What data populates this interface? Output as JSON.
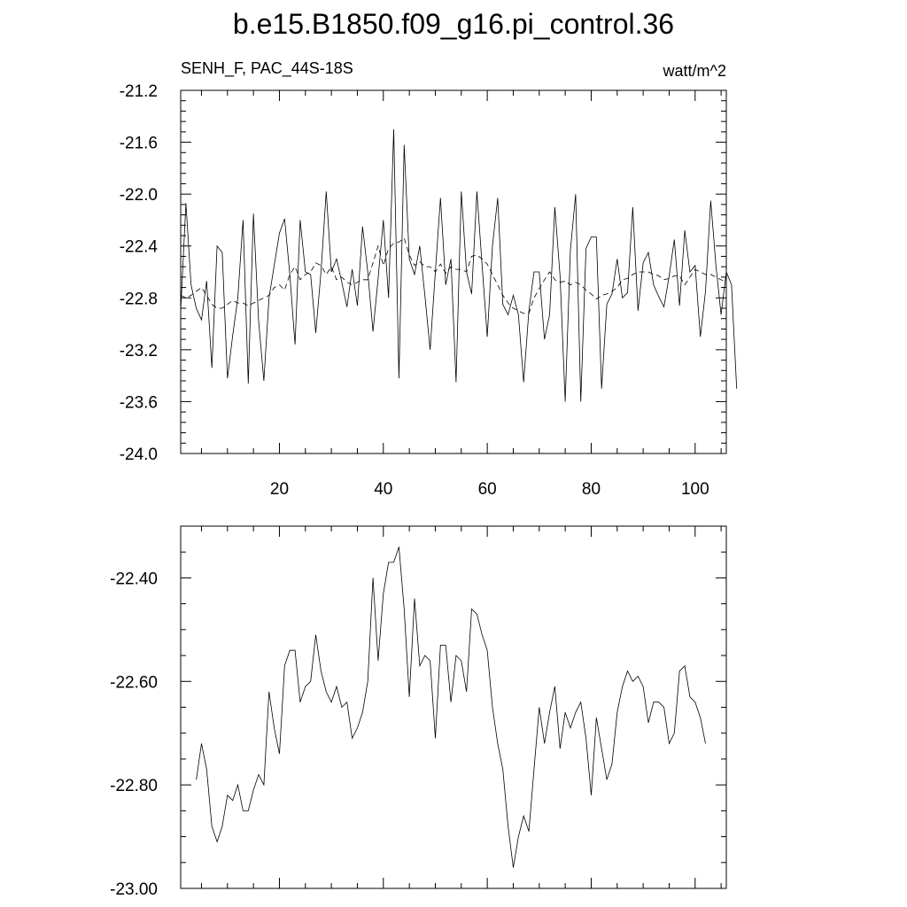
{
  "title": "b.e15.B1850.f09_g16.pi_control.36",
  "chart_data": [
    {
      "type": "line",
      "left_label": "SENH_F, PAC_44S-18S",
      "right_label": "watt/m^2",
      "xlim": [
        1,
        106
      ],
      "ylim": [
        -24.0,
        -21.2
      ],
      "x_ticks": [
        20,
        40,
        60,
        80,
        100
      ],
      "x_minor_step": 5,
      "y_ticks": [
        -24.0,
        -23.6,
        -23.2,
        -22.8,
        -22.4,
        -22.0,
        -21.6,
        -21.2
      ],
      "y_tick_labels": [
        "-24.0",
        "-23.6",
        "-23.2",
        "-22.8",
        "-22.4",
        "-22.0",
        "-21.6",
        "-21.2"
      ],
      "y_minor_step": 0.08,
      "x_start": 1,
      "series": [
        {
          "style": "solid",
          "values": [
            -22.9,
            -22.07,
            -22.7,
            -22.88,
            -22.97,
            -22.67,
            -23.34,
            -22.4,
            -22.45,
            -23.42,
            -23.09,
            -22.8,
            -22.2,
            -23.46,
            -22.15,
            -22.98,
            -23.44,
            -22.8,
            -22.55,
            -22.3,
            -22.19,
            -22.62,
            -23.16,
            -22.2,
            -22.6,
            -22.62,
            -23.07,
            -22.6,
            -21.98,
            -22.6,
            -22.5,
            -22.68,
            -22.87,
            -22.58,
            -22.86,
            -22.25,
            -22.6,
            -23.06,
            -22.65,
            -22.2,
            -22.8,
            -21.5,
            -23.42,
            -21.62,
            -22.5,
            -22.62,
            -22.4,
            -22.78,
            -23.2,
            -22.6,
            -22.03,
            -22.7,
            -22.5,
            -23.45,
            -21.98,
            -22.6,
            -22.77,
            -21.98,
            -22.55,
            -23.1,
            -22.4,
            -22.03,
            -22.85,
            -22.93,
            -22.78,
            -22.93,
            -23.45,
            -22.9,
            -22.6,
            -22.6,
            -23.12,
            -22.93,
            -22.1,
            -22.63,
            -23.6,
            -22.43,
            -22.0,
            -23.6,
            -22.42,
            -22.33,
            -22.33,
            -23.5,
            -22.85,
            -22.77,
            -22.5,
            -22.8,
            -22.76,
            -22.1,
            -22.9,
            -22.53,
            -22.45,
            -22.7,
            -22.79,
            -22.87,
            -22.63,
            -22.35,
            -22.86,
            -22.28,
            -22.6,
            -22.55,
            -23.1,
            -22.75,
            -22.05,
            -22.55,
            -22.93,
            -22.6,
            -22.7,
            -23.5
          ]
        },
        {
          "style": "dashed",
          "values": [
            -22.78,
            -22.8,
            -22.78,
            -22.75,
            -22.72,
            -22.78,
            -22.85,
            -22.88,
            -22.88,
            -22.85,
            -22.82,
            -22.84,
            -22.84,
            -22.86,
            -22.84,
            -22.82,
            -22.8,
            -22.78,
            -22.72,
            -22.7,
            -22.74,
            -22.62,
            -22.56,
            -22.66,
            -22.62,
            -22.6,
            -22.53,
            -22.55,
            -22.62,
            -22.56,
            -22.66,
            -22.64,
            -22.68,
            -22.7,
            -22.68,
            -22.66,
            -22.66,
            -22.53,
            -22.4,
            -22.55,
            -22.42,
            -22.38,
            -22.37,
            -22.34,
            -22.47,
            -22.55,
            -22.52,
            -22.56,
            -22.56,
            -22.6,
            -22.54,
            -22.61,
            -22.56,
            -22.58,
            -22.58,
            -22.6,
            -22.48,
            -22.47,
            -22.5,
            -22.54,
            -22.62,
            -22.7,
            -22.78,
            -22.84,
            -22.88,
            -22.9,
            -22.92,
            -22.92,
            -22.8,
            -22.73,
            -22.66,
            -22.6,
            -22.66,
            -22.68,
            -22.67,
            -22.7,
            -22.68,
            -22.7,
            -22.74,
            -22.77,
            -22.81,
            -22.78,
            -22.77,
            -22.75,
            -22.72,
            -22.66,
            -22.65,
            -22.62,
            -22.6,
            -22.6,
            -22.6,
            -22.62,
            -22.63,
            -22.66,
            -22.65,
            -22.63,
            -22.63,
            -22.7,
            -22.64,
            -22.58,
            -22.6,
            -22.62,
            -22.62,
            -22.64,
            -22.66,
            -22.68
          ]
        }
      ]
    },
    {
      "type": "line",
      "xlim": [
        1,
        106
      ],
      "ylim": [
        -23.0,
        -22.3
      ],
      "x_ticks": [
        20,
        40,
        60,
        80,
        100
      ],
      "x_minor_step": 5,
      "y_ticks": [
        -23.0,
        -22.8,
        -22.6,
        -22.4
      ],
      "y_tick_labels": [
        "-23.00",
        "-22.80",
        "-22.60",
        "-22.40"
      ],
      "y_minor_step": 0.05,
      "x_start": 4,
      "series": [
        {
          "style": "solid",
          "values": [
            -22.79,
            -22.72,
            -22.77,
            -22.88,
            -22.91,
            -22.88,
            -22.82,
            -22.83,
            -22.8,
            -22.85,
            -22.85,
            -22.81,
            -22.78,
            -22.8,
            -22.62,
            -22.69,
            -22.74,
            -22.57,
            -22.54,
            -22.54,
            -22.64,
            -22.61,
            -22.6,
            -22.51,
            -22.58,
            -22.62,
            -22.64,
            -22.61,
            -22.65,
            -22.64,
            -22.71,
            -22.69,
            -22.66,
            -22.6,
            -22.4,
            -22.56,
            -22.43,
            -22.37,
            -22.37,
            -22.34,
            -22.46,
            -22.63,
            -22.44,
            -22.57,
            -22.55,
            -22.56,
            -22.71,
            -22.53,
            -22.53,
            -22.64,
            -22.55,
            -22.56,
            -22.62,
            -22.46,
            -22.47,
            -22.51,
            -22.54,
            -22.65,
            -22.72,
            -22.77,
            -22.88,
            -22.96,
            -22.9,
            -22.86,
            -22.89,
            -22.77,
            -22.65,
            -22.72,
            -22.66,
            -22.61,
            -22.73,
            -22.66,
            -22.69,
            -22.66,
            -22.64,
            -22.71,
            -22.82,
            -22.67,
            -22.73,
            -22.79,
            -22.76,
            -22.66,
            -22.61,
            -22.58,
            -22.6,
            -22.59,
            -22.61,
            -22.68,
            -22.64,
            -22.64,
            -22.65,
            -22.72,
            -22.7,
            -22.58,
            -22.57,
            -22.63,
            -22.64,
            -22.67,
            -22.72
          ]
        }
      ]
    }
  ]
}
